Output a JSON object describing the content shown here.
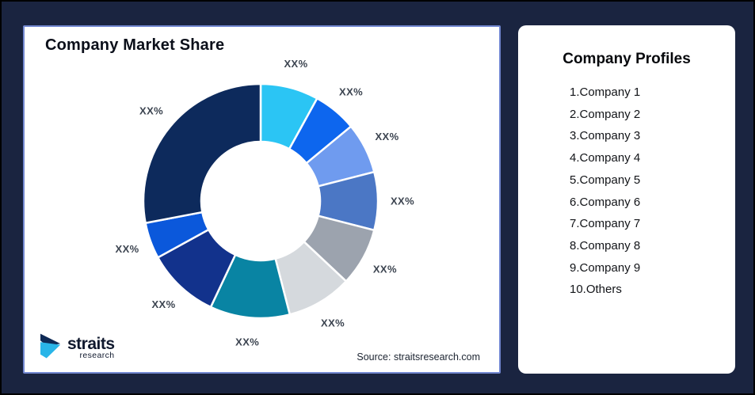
{
  "window": {
    "background_color": "#1A2440",
    "border_color": "#000000"
  },
  "chart_card": {
    "title": "Company Market Share",
    "source": "Source: straitsresearch.com",
    "logo": {
      "brand": "straits",
      "sub": "research",
      "mark_navy": "#0E2A56",
      "mark_cyan": "#29B5E8"
    }
  },
  "profiles_card": {
    "title": "Company Profiles",
    "items": [
      "1.Company 1",
      "2.Company 2",
      "3.Company 3",
      "4.Company 4",
      "5.Company 5",
      "6.Company 6",
      "7.Company 7",
      "8.Company 8",
      "9.Company 9",
      "10.Others"
    ]
  },
  "chart_data": {
    "type": "pie",
    "variant": "donut",
    "title": "Company Market Share",
    "labels": [
      "XX%",
      "XX%",
      "XX%",
      "XX%",
      "XX%",
      "XX%",
      "XX%",
      "XX%",
      "XX%",
      "XX%"
    ],
    "values": [
      8,
      6,
      7,
      8,
      8,
      9,
      11,
      10,
      5,
      28
    ],
    "colors": [
      "#2BC5F4",
      "#0D66EE",
      "#6F9BEF",
      "#4B77C5",
      "#9CA3AE",
      "#D5D9DD",
      "#0984A3",
      "#12328C",
      "#0B58DB",
      "#0D2A5C"
    ],
    "start_angle_deg": 0,
    "direction": "clockwise",
    "inner_radius_ratio": 0.51,
    "label_position": "outside",
    "legend": "none",
    "segment_stroke": "#ffffff"
  }
}
